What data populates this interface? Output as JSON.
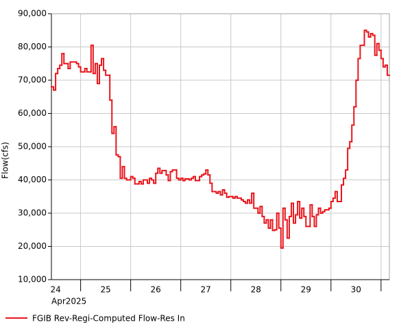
{
  "chart_data": {
    "type": "step",
    "y_label": "Flow(cfs)",
    "x_caption": "Apr2025",
    "ylim": [
      10000,
      90000
    ],
    "yticks": [
      {
        "value": 10000,
        "label": "10,000"
      },
      {
        "value": 20000,
        "label": "20,000"
      },
      {
        "value": 30000,
        "label": "30,000"
      },
      {
        "value": 40000,
        "label": "40,000"
      },
      {
        "value": 50000,
        "label": "50,000"
      },
      {
        "value": 60000,
        "label": "60,000"
      },
      {
        "value": 70000,
        "label": "70,000"
      },
      {
        "value": 80000,
        "label": "80,000"
      },
      {
        "value": 90000,
        "label": "90,000"
      }
    ],
    "xlim": [
      10,
      172
    ],
    "xticks": [
      24,
      48,
      72,
      96,
      120,
      144,
      168
    ],
    "xtick_labels": [
      {
        "value": 12,
        "label": "24"
      },
      {
        "value": 36,
        "label": "25"
      },
      {
        "value": 60,
        "label": "26"
      },
      {
        "value": 84,
        "label": "27"
      },
      {
        "value": 108,
        "label": "28"
      },
      {
        "value": 132,
        "label": "29"
      },
      {
        "value": 156,
        "label": "30"
      }
    ],
    "grid": true,
    "series": [
      {
        "name": "FGIB Rev-Regi-Computed Flow-Res In",
        "color": "#e8141b",
        "x": [
          10,
          11,
          12,
          13,
          14,
          15,
          16,
          18,
          19,
          22,
          23,
          24,
          26,
          27,
          29,
          30,
          31,
          32,
          33,
          34,
          35,
          36,
          38,
          39,
          40,
          41,
          42,
          43,
          44,
          45,
          46,
          48,
          49,
          50,
          52,
          53,
          54,
          56,
          57,
          58,
          59,
          60,
          61,
          62,
          63,
          65,
          66,
          67,
          68,
          70,
          71,
          72,
          73,
          74,
          76,
          77,
          78,
          79,
          81,
          82,
          83,
          84,
          85,
          86,
          87,
          89,
          90,
          91,
          92,
          93,
          94,
          95,
          97,
          98,
          99,
          101,
          102,
          103,
          104,
          105,
          106,
          107,
          109,
          110,
          111,
          112,
          113,
          114,
          115,
          116,
          117,
          118,
          119,
          120,
          121,
          122,
          123,
          124,
          125,
          126,
          127,
          128,
          129,
          130,
          131,
          132,
          134,
          135,
          136,
          137,
          138,
          139,
          140,
          141,
          143,
          144,
          145,
          146,
          147,
          149,
          150,
          151,
          152,
          153,
          154,
          155,
          156,
          157,
          158,
          160,
          161,
          162,
          163,
          164,
          165,
          166,
          167,
          168,
          169,
          170,
          171
        ],
        "values": [
          68000,
          67000,
          72000,
          73500,
          74500,
          78000,
          75000,
          73500,
          75500,
          75000,
          74000,
          72500,
          73500,
          72500,
          80500,
          72000,
          75000,
          69000,
          74500,
          76500,
          73000,
          71500,
          64000,
          54000,
          56000,
          47500,
          47000,
          40500,
          44000,
          40500,
          40000,
          41000,
          40500,
          38800,
          39500,
          38800,
          40000,
          39000,
          40500,
          40000,
          39000,
          42000,
          43500,
          42000,
          42800,
          41500,
          39800,
          42500,
          43000,
          40500,
          40000,
          40500,
          39800,
          40300,
          40000,
          40500,
          41000,
          39800,
          41000,
          41500,
          41800,
          43000,
          41500,
          39000,
          36500,
          36000,
          36500,
          35500,
          37000,
          36000,
          34800,
          35000,
          34500,
          35000,
          34500,
          34000,
          33500,
          33000,
          34000,
          33000,
          36000,
          31500,
          30000,
          32000,
          29000,
          27000,
          28000,
          25500,
          28000,
          24800,
          25000,
          30000,
          25500,
          19500,
          31500,
          28000,
          22500,
          29000,
          33000,
          27000,
          29500,
          33500,
          28500,
          31500,
          29000,
          26000,
          32500,
          29000,
          26000,
          29500,
          31500,
          30000,
          30500,
          31000,
          31500,
          33500,
          34500,
          36500,
          33500,
          38500,
          40500,
          43000,
          49500,
          51500,
          56500,
          62000,
          70000,
          76500,
          80500,
          85000,
          84500,
          83000,
          84000,
          83500,
          77500,
          81000,
          79000,
          76500,
          74000,
          74500,
          71500
        ]
      }
    ]
  }
}
